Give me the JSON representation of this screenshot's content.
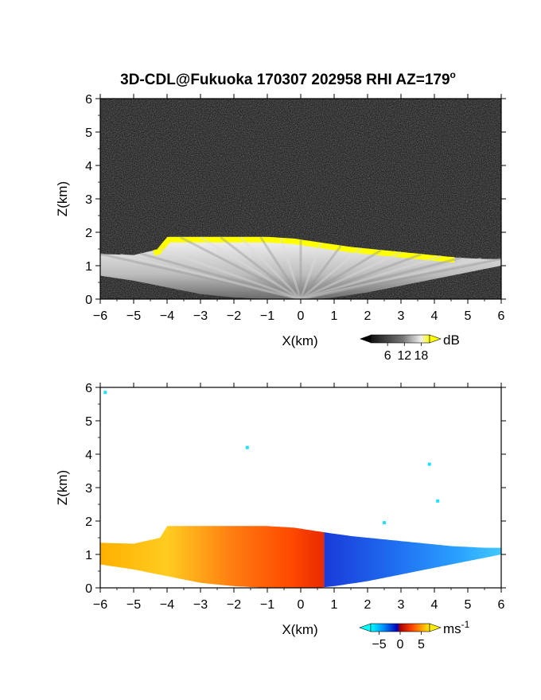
{
  "figure": {
    "title": "3D-CDL@Fukuoka 170307 202958 RHI AZ=179",
    "title_sup": "o"
  },
  "chart_data": [
    {
      "type": "heatmap",
      "panel": "reflectivity",
      "xlabel": "X(km)",
      "ylabel": "Z(km)",
      "xlim": [
        -6,
        6
      ],
      "ylim": [
        0,
        6
      ],
      "xticks": [
        -6,
        -5,
        -4,
        -3,
        -2,
        -1,
        0,
        1,
        2,
        3,
        4,
        5,
        6
      ],
      "yticks": [
        0,
        1,
        2,
        3,
        4,
        5,
        6
      ],
      "background": "noise (dark gray)",
      "top_profile": {
        "x": [
          -6.0,
          -5.0,
          -4.2,
          -4.0,
          -3.0,
          -2.0,
          -1.0,
          -0.2,
          0.8,
          1.5,
          2.5,
          3.5,
          4.5,
          5.5,
          6.0
        ],
        "z": [
          1.35,
          1.32,
          1.5,
          1.85,
          1.85,
          1.85,
          1.85,
          1.8,
          1.65,
          1.55,
          1.45,
          1.35,
          1.25,
          1.2,
          1.2
        ]
      },
      "bottom_profile": {
        "x": [
          -6.0,
          -5.0,
          -4.0,
          -3.0,
          -2.0,
          -1.0,
          -0.5,
          0.0,
          0.5,
          1.0,
          2.0,
          3.0,
          4.0,
          5.0,
          6.0
        ],
        "z": [
          0.7,
          0.55,
          0.35,
          0.15,
          0.05,
          0.0,
          0.0,
          0.0,
          0.0,
          0.05,
          0.2,
          0.4,
          0.6,
          0.8,
          1.0
        ]
      },
      "colorbar": {
        "label": "dB",
        "ticks": [
          "6",
          "12",
          "18"
        ],
        "range": [
          0,
          21
        ],
        "tick_values": [
          6,
          12,
          18
        ],
        "colors": [
          "#000000",
          "#ffffff",
          "#ffff00"
        ]
      }
    },
    {
      "type": "heatmap",
      "panel": "doppler-velocity",
      "xlabel": "X(km)",
      "ylabel": "Z(km)",
      "xlim": [
        -6,
        6
      ],
      "ylim": [
        0,
        6
      ],
      "xticks": [
        -6,
        -5,
        -4,
        -3,
        -2,
        -1,
        0,
        1,
        2,
        3,
        4,
        5,
        6
      ],
      "yticks": [
        0,
        1,
        2,
        3,
        4,
        5,
        6
      ],
      "background": "white (no data)",
      "velocity_field": {
        "positive_region_x": [
          -6.0,
          0.7
        ],
        "negative_region_x": [
          0.7,
          6.0
        ],
        "sign_boundary_x": 0.7
      },
      "isolated_points": [
        {
          "x": -5.85,
          "z": 5.85
        },
        {
          "x": -1.6,
          "z": 4.2
        },
        {
          "x": 3.85,
          "z": 3.7
        },
        {
          "x": 4.1,
          "z": 2.6
        },
        {
          "x": 2.5,
          "z": 1.95
        }
      ],
      "colorbar": {
        "label": "ms",
        "label_sup": "-1",
        "ticks": [
          "−5",
          "0",
          "5"
        ],
        "range": [
          -7,
          7
        ],
        "tick_values": [
          -5,
          0,
          5
        ],
        "colors": [
          "#00ffff",
          "#0066ff",
          "#0000cc",
          "#ff0000",
          "#ff8800",
          "#ffff00"
        ]
      }
    }
  ]
}
